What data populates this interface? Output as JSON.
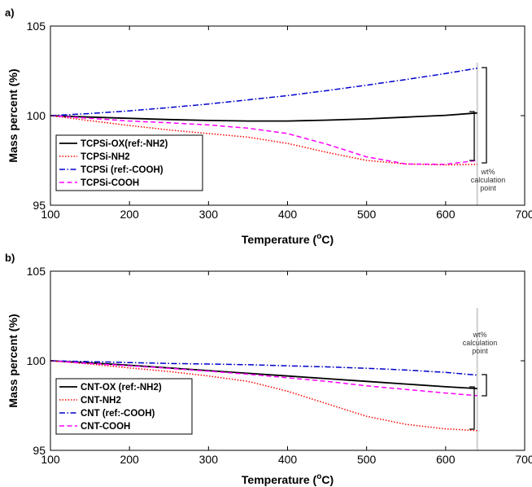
{
  "chart_data": [
    {
      "panel_label": "a)",
      "type": "line",
      "xlabel": "Temperature",
      "xlabel_unit": "oC",
      "ylabel": "Mass percent (%)",
      "xlim": [
        100,
        700
      ],
      "ylim": [
        95,
        105
      ],
      "xticks": [
        100,
        200,
        300,
        400,
        500,
        600,
        700
      ],
      "yticks": [
        95,
        100,
        105
      ],
      "grid": false,
      "legend_position": "bottom-left",
      "annotation": [
        "wt%",
        "calculation",
        "point"
      ],
      "calc_point_x": 640,
      "series": [
        {
          "name": "TCPSi-OX(ref:-NH2)",
          "color": "#000000",
          "style": "solid",
          "x": [
            100,
            150,
            200,
            250,
            300,
            350,
            400,
            450,
            500,
            550,
            600,
            640
          ],
          "y": [
            100.0,
            99.92,
            99.85,
            99.78,
            99.73,
            99.7,
            99.7,
            99.75,
            99.82,
            99.92,
            100.02,
            100.15
          ]
        },
        {
          "name": "TCPSi-NH2",
          "color": "#ff0000",
          "style": "dotted",
          "x": [
            100,
            150,
            200,
            250,
            300,
            350,
            400,
            450,
            500,
            550,
            600,
            640
          ],
          "y": [
            100.0,
            99.72,
            99.45,
            99.2,
            99.0,
            98.8,
            98.45,
            97.95,
            97.5,
            97.3,
            97.25,
            97.28
          ]
        },
        {
          "name": "TCPSi (ref:-COOH)",
          "color": "#0000cc",
          "style": "dashdot",
          "x": [
            100,
            150,
            200,
            250,
            300,
            350,
            400,
            450,
            500,
            550,
            600,
            640
          ],
          "y": [
            100.0,
            100.12,
            100.27,
            100.45,
            100.65,
            100.88,
            101.12,
            101.4,
            101.7,
            102.02,
            102.35,
            102.65
          ]
        },
        {
          "name": "TCPSi-COOH",
          "color": "#ff00ff",
          "style": "dashed",
          "x": [
            100,
            150,
            200,
            250,
            300,
            350,
            400,
            450,
            500,
            550,
            600,
            640
          ],
          "y": [
            100.0,
            99.85,
            99.7,
            99.6,
            99.48,
            99.3,
            99.0,
            98.4,
            97.7,
            97.3,
            97.28,
            97.5
          ]
        }
      ]
    },
    {
      "panel_label": "b)",
      "type": "line",
      "xlabel": "Temperature",
      "xlabel_unit": "oC",
      "ylabel": "Mass percent (%)",
      "xlim": [
        100,
        700
      ],
      "ylim": [
        95,
        105
      ],
      "xticks": [
        100,
        200,
        300,
        400,
        500,
        600,
        700
      ],
      "yticks": [
        95,
        100,
        105
      ],
      "grid": false,
      "legend_position": "bottom-left",
      "annotation": [
        "wt%",
        "calculation",
        "point"
      ],
      "calc_point_x": 640,
      "series": [
        {
          "name": "CNT-OX (ref:-NH2)",
          "color": "#000000",
          "style": "solid",
          "x": [
            100,
            150,
            200,
            250,
            300,
            350,
            400,
            450,
            500,
            550,
            600,
            640
          ],
          "y": [
            100.0,
            99.88,
            99.75,
            99.6,
            99.45,
            99.3,
            99.15,
            99.0,
            98.85,
            98.7,
            98.55,
            98.45
          ]
        },
        {
          "name": "CNT-NH2",
          "color": "#ff0000",
          "style": "dotted",
          "x": [
            100,
            150,
            200,
            250,
            300,
            350,
            400,
            450,
            500,
            550,
            600,
            640
          ],
          "y": [
            100.0,
            99.82,
            99.6,
            99.4,
            99.15,
            98.85,
            98.3,
            97.6,
            96.9,
            96.45,
            96.2,
            96.1
          ]
        },
        {
          "name": "CNT (ref:-COOH)",
          "color": "#0000cc",
          "style": "dashdot",
          "x": [
            100,
            150,
            200,
            250,
            300,
            350,
            400,
            450,
            500,
            550,
            600,
            640
          ],
          "y": [
            100.0,
            99.95,
            99.9,
            99.85,
            99.82,
            99.78,
            99.72,
            99.66,
            99.58,
            99.48,
            99.35,
            99.2
          ]
        },
        {
          "name": "CNT-COOH",
          "color": "#ff00ff",
          "style": "dashed",
          "x": [
            100,
            150,
            200,
            250,
            300,
            350,
            400,
            450,
            500,
            550,
            600,
            640
          ],
          "y": [
            100.0,
            99.85,
            99.72,
            99.58,
            99.42,
            99.25,
            99.05,
            98.85,
            98.6,
            98.4,
            98.2,
            98.05
          ]
        }
      ]
    }
  ]
}
